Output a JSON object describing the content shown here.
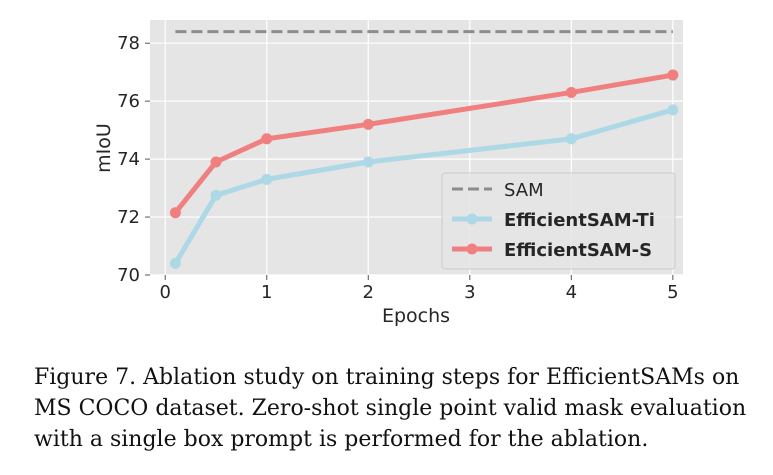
{
  "chart_data": {
    "type": "line",
    "xlabel": "Epochs",
    "ylabel": "mIoU",
    "xlim": [
      -0.15,
      5.1
    ],
    "ylim": [
      70,
      78.8
    ],
    "xticks": [
      "0",
      "1",
      "2",
      "3",
      "4",
      "5"
    ],
    "yticks": [
      "70",
      "72",
      "74",
      "76",
      "78"
    ],
    "grid": true,
    "legend_position": "bottom-right",
    "reference": {
      "name": "SAM",
      "value": 78.4,
      "color": "#8c8c8c",
      "style": "dashed"
    },
    "series": [
      {
        "name": "EfficientSAM-Ti",
        "color": "#add8e6",
        "x": [
          0.1,
          0.5,
          1,
          2,
          4,
          5
        ],
        "y": [
          70.4,
          72.75,
          73.3,
          73.9,
          74.7,
          75.7
        ]
      },
      {
        "name": "EfficientSAM-S",
        "color": "#f08080",
        "x": [
          0.1,
          0.5,
          1,
          2,
          4,
          5
        ],
        "y": [
          72.15,
          73.9,
          74.7,
          75.2,
          76.3,
          76.9
        ]
      }
    ]
  },
  "caption": "Figure 7. Ablation study on training steps for EfficientSAMs on MS COCO dataset. Zero-shot single point valid mask evaluation with a single box prompt is performed for the ablation."
}
